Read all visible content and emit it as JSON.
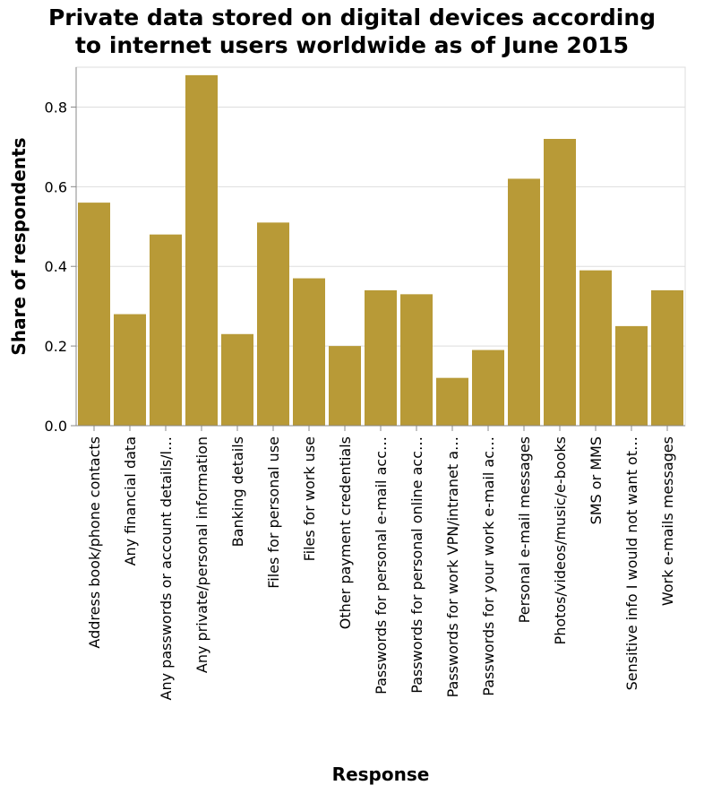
{
  "chart_data": {
    "type": "bar",
    "title_lines": [
      "Private data stored on digital devices according",
      "to internet users worldwide as of June 2015"
    ],
    "xlabel": "Response",
    "ylabel": "Share of respondents",
    "ylim": [
      0,
      0.9
    ],
    "yticks": [
      "0.0",
      "0.2",
      "0.4",
      "0.6",
      "0.8"
    ],
    "grid": true,
    "bar_color": "#b89a37",
    "categories": [
      "Address book/phone contacts",
      "Any financial data",
      "Any passwords or account details/l…",
      "Any private/personal information",
      "Banking details",
      "Files for personal use",
      "Files for work use",
      "Other payment credentials",
      "Passwords for personal e-mail acc…",
      "Passwords for personal online acc…",
      "Passwords for work VPN/intranet a…",
      "Passwords for your work e-mail ac…",
      "Personal e-mail messages",
      "Photos/videos/music/e-books",
      "SMS or MMS",
      "Sensitive info I would not want ot…",
      "Work e-mails messages"
    ],
    "values": [
      0.56,
      0.28,
      0.48,
      0.88,
      0.23,
      0.51,
      0.37,
      0.2,
      0.34,
      0.33,
      0.12,
      0.19,
      0.62,
      0.72,
      0.39,
      0.25,
      0.34
    ]
  }
}
